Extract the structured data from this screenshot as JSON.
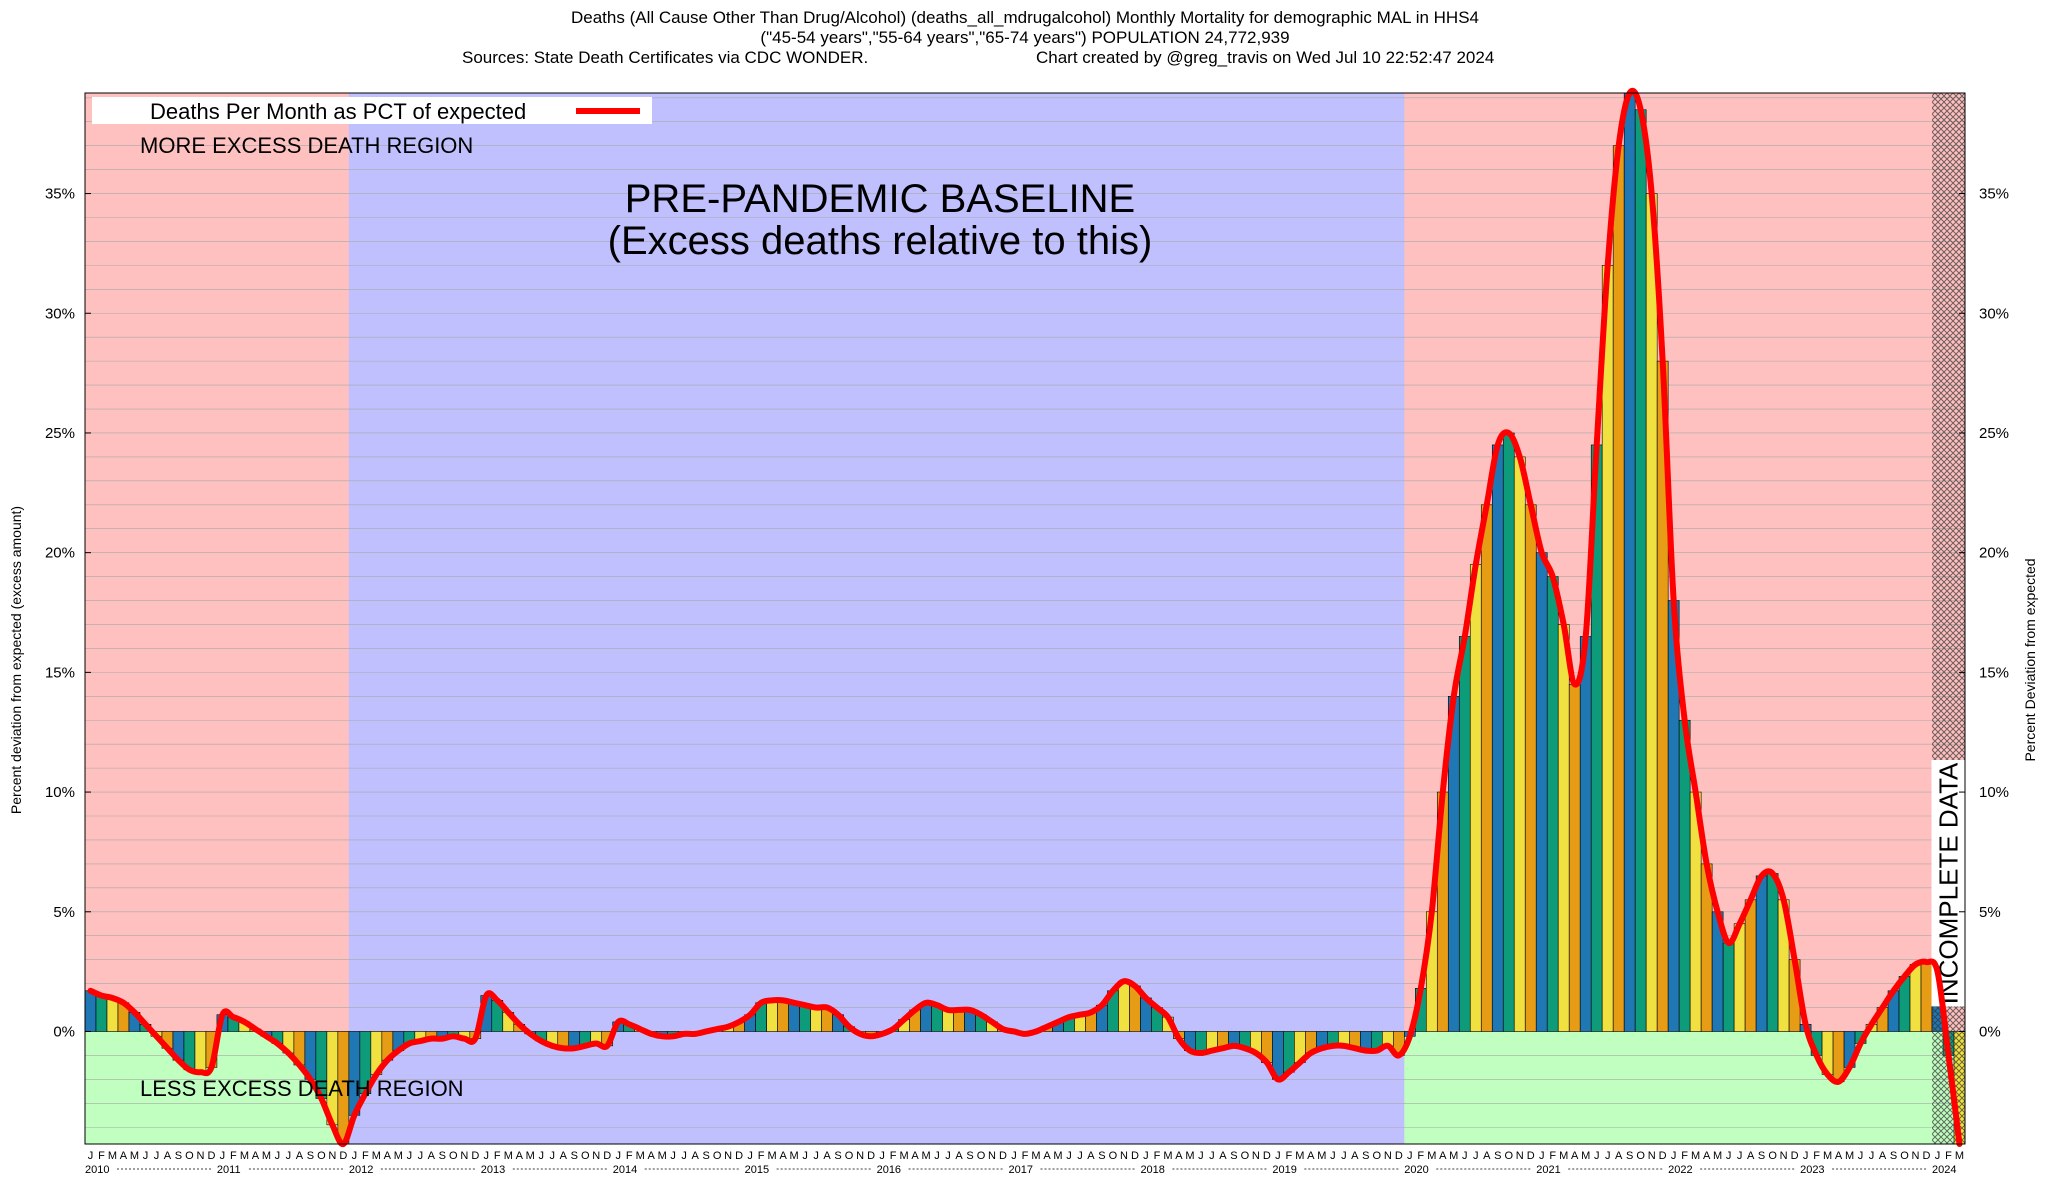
{
  "titles": {
    "line1": "Deaths (All Cause Other Than Drug/Alcohol) (deaths_all_mdrugalcohol) Monthly Mortality for demographic MAL in HHS4",
    "line2": "(\"45-54 years\",\"55-64 years\",\"65-74 years\") POPULATION 24,772,939",
    "sources": "Sources: State Death Certificates via CDC WONDER.",
    "credit": "Chart created by @greg_travis on Wed Jul 10 22:52:47 2024"
  },
  "labels": {
    "left_axis": "Percent deviation from expected (excess amount)",
    "right_axis": "Percent Deviation from expected",
    "legend": "Deaths Per Month as PCT of expected",
    "more_region": "MORE EXCESS DEATH REGION",
    "less_region": "LESS EXCESS DEATH REGION",
    "baseline_line1": "PRE-PANDEMIC BASELINE",
    "baseline_line2": "(Excess deaths relative to this)",
    "incomplete": "INCOMPLETE DATA"
  },
  "colors": {
    "more_region": "#ffc0c0",
    "less_region": "#c0ffc0",
    "baseline_region": "#c0c0ff",
    "line": "#ff0000",
    "bar_cycle": [
      "#1f77b4",
      "#0e9b7a",
      "#f0e040",
      "#e69c14"
    ]
  },
  "chart_data": {
    "type": "bar",
    "y_unit": "%",
    "ylim": [
      -4.7,
      39.2
    ],
    "yticks": [
      0,
      5,
      10,
      15,
      20,
      25,
      30,
      35
    ],
    "grid": true,
    "legend_position": "top-left",
    "month_labels": [
      "J",
      "F",
      "M",
      "A",
      "M",
      "J",
      "J",
      "A",
      "S",
      "O",
      "N",
      "D"
    ],
    "years": [
      "2010",
      "2011",
      "2012",
      "2013",
      "2014",
      "2015",
      "2016",
      "2017",
      "2018",
      "2019",
      "2020",
      "2021",
      "2022",
      "2023",
      "2024"
    ],
    "start": "2010-01",
    "baseline_period": [
      "2012-01",
      "2019-12"
    ],
    "incomplete_from": "2024-01",
    "values": [
      1.7,
      1.5,
      1.4,
      1.2,
      0.8,
      0.3,
      -0.2,
      -0.7,
      -1.2,
      -1.6,
      -1.7,
      -1.5,
      0.7,
      0.6,
      0.4,
      0.1,
      -0.2,
      -0.5,
      -0.9,
      -1.4,
      -2.0,
      -2.8,
      -3.9,
      -4.7,
      -3.5,
      -2.6,
      -1.8,
      -1.2,
      -0.8,
      -0.5,
      -0.4,
      -0.3,
      -0.3,
      -0.2,
      -0.3,
      -0.3,
      1.5,
      1.3,
      0.8,
      0.3,
      -0.1,
      -0.4,
      -0.6,
      -0.7,
      -0.7,
      -0.6,
      -0.5,
      -0.6,
      0.4,
      0.3,
      0.1,
      -0.1,
      -0.2,
      -0.2,
      -0.1,
      -0.1,
      0.0,
      0.1,
      0.2,
      0.4,
      0.7,
      1.2,
      1.3,
      1.3,
      1.2,
      1.1,
      1.0,
      1.0,
      0.7,
      0.2,
      -0.1,
      -0.2,
      -0.1,
      0.1,
      0.5,
      0.9,
      1.2,
      1.1,
      0.9,
      0.9,
      0.9,
      0.7,
      0.4,
      0.1,
      0.0,
      -0.1,
      0.0,
      0.2,
      0.4,
      0.6,
      0.7,
      0.8,
      1.1,
      1.7,
      2.1,
      1.9,
      1.4,
      1.0,
      0.6,
      -0.3,
      -0.8,
      -0.9,
      -0.8,
      -0.7,
      -0.6,
      -0.7,
      -0.9,
      -1.3,
      -2.0,
      -1.7,
      -1.3,
      -0.9,
      -0.7,
      -0.6,
      -0.6,
      -0.7,
      -0.8,
      -0.8,
      -0.6,
      -1.0,
      -0.2,
      1.8,
      5.0,
      10.0,
      14.0,
      16.5,
      19.5,
      22.0,
      24.5,
      25.0,
      24.0,
      22.0,
      20.0,
      19.0,
      17.0,
      14.5,
      16.5,
      24.5,
      32.0,
      37.0,
      39.2,
      38.5,
      35.0,
      28.0,
      18.0,
      13.0,
      10.0,
      7.0,
      5.0,
      3.7,
      4.5,
      5.5,
      6.5,
      6.6,
      5.5,
      3.0,
      0.3,
      -1.0,
      -1.8,
      -2.1,
      -1.5,
      -0.5,
      0.3,
      1.0,
      1.7,
      2.3,
      2.8,
      2.9,
      2.5,
      -1.0,
      -4.7
    ]
  }
}
